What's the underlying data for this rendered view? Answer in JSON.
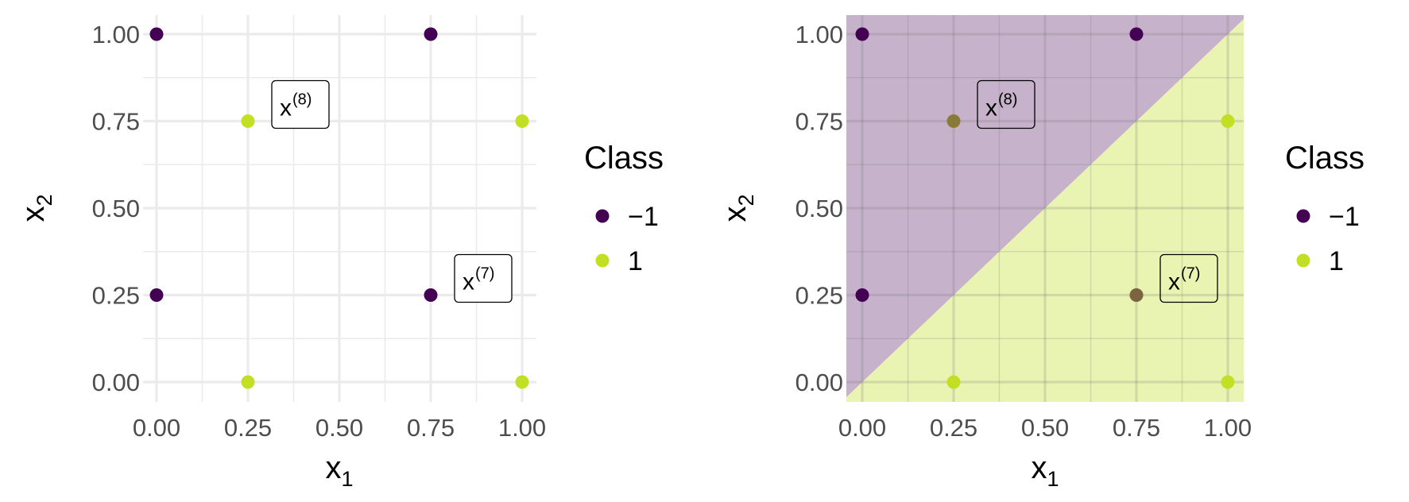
{
  "chart_data": [
    {
      "type": "scatter",
      "xlabel": {
        "base": "x",
        "sub": "1"
      },
      "ylabel": {
        "base": "x",
        "sub": "2"
      },
      "xlim": [
        0,
        1
      ],
      "ylim": [
        0,
        1
      ],
      "x_ticks": [
        "0.00",
        "0.25",
        "0.50",
        "0.75",
        "1.00"
      ],
      "y_ticks": [
        "0.00",
        "0.25",
        "0.50",
        "0.75",
        "1.00"
      ],
      "grid": true,
      "decision_regions": false,
      "points": [
        {
          "x": 0.0,
          "y": 1.0,
          "class": "-1"
        },
        {
          "x": 0.75,
          "y": 1.0,
          "class": "-1"
        },
        {
          "x": 0.0,
          "y": 0.25,
          "class": "-1"
        },
        {
          "x": 0.75,
          "y": 0.25,
          "class": "-1"
        },
        {
          "x": 0.25,
          "y": 0.75,
          "class": "1"
        },
        {
          "x": 1.0,
          "y": 0.75,
          "class": "1"
        },
        {
          "x": 0.25,
          "y": 0.0,
          "class": "1"
        },
        {
          "x": 1.0,
          "y": 0.0,
          "class": "1"
        }
      ],
      "annotations": [
        {
          "x": 0.25,
          "y": 0.75,
          "base": "x",
          "sup": "(8)"
        },
        {
          "x": 0.75,
          "y": 0.25,
          "base": "x",
          "sup": "(7)"
        }
      ],
      "legend": {
        "title": "Class",
        "position": "right",
        "entries": [
          {
            "label": "−1",
            "color": "#440154"
          },
          {
            "label": "1",
            "color": "#c2df23"
          }
        ]
      }
    },
    {
      "type": "scatter",
      "xlabel": {
        "base": "x",
        "sub": "1"
      },
      "ylabel": {
        "base": "x",
        "sub": "2"
      },
      "xlim": [
        0,
        1
      ],
      "ylim": [
        0,
        1
      ],
      "x_ticks": [
        "0.00",
        "0.25",
        "0.50",
        "0.75",
        "1.00"
      ],
      "y_ticks": [
        "0.00",
        "0.25",
        "0.50",
        "0.75",
        "1.00"
      ],
      "grid": true,
      "decision_regions": true,
      "decision_boundary": "x2 = x1",
      "region_colors": {
        "upper_left": "#440154",
        "lower_right": "#c2df23"
      },
      "points": [
        {
          "x": 0.0,
          "y": 1.0,
          "class": "-1"
        },
        {
          "x": 0.75,
          "y": 1.0,
          "class": "-1"
        },
        {
          "x": 0.0,
          "y": 0.25,
          "class": "-1"
        },
        {
          "x": 0.75,
          "y": 0.25,
          "class": "-1"
        },
        {
          "x": 0.25,
          "y": 0.75,
          "class": "1"
        },
        {
          "x": 1.0,
          "y": 0.75,
          "class": "1"
        },
        {
          "x": 0.25,
          "y": 0.0,
          "class": "1"
        },
        {
          "x": 1.0,
          "y": 0.0,
          "class": "1"
        }
      ],
      "annotations": [
        {
          "x": 0.25,
          "y": 0.75,
          "base": "x",
          "sup": "(8)"
        },
        {
          "x": 0.75,
          "y": 0.25,
          "base": "x",
          "sup": "(7)"
        }
      ],
      "legend": {
        "title": "Class",
        "position": "right",
        "entries": [
          {
            "label": "−1",
            "color": "#440154"
          },
          {
            "label": "1",
            "color": "#c2df23"
          }
        ]
      }
    }
  ]
}
